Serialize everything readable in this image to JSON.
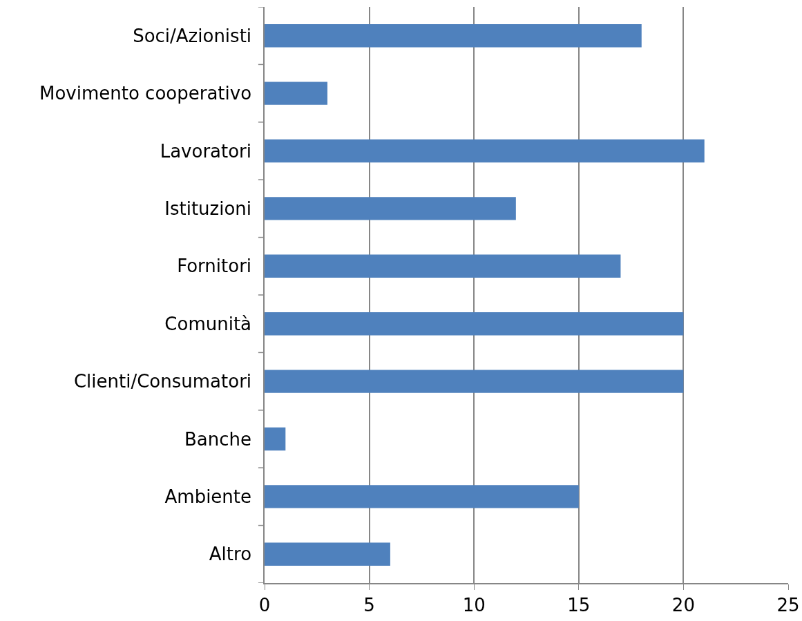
{
  "chart_data": {
    "type": "bar",
    "orientation": "horizontal",
    "categories": [
      "Soci/Azionisti",
      "Movimento cooperativo",
      "Lavoratori",
      "Istituzioni",
      "Fornitori",
      "Comunità",
      "Clienti/Consumatori",
      "Banche",
      "Ambiente",
      "Altro"
    ],
    "values": [
      18,
      3,
      21,
      12,
      17,
      20,
      20,
      1,
      15,
      6
    ],
    "color": "#4f81bd",
    "xlim": [
      0,
      25
    ],
    "xticks": [
      0,
      5,
      10,
      15,
      20,
      25
    ],
    "grid": "x"
  }
}
